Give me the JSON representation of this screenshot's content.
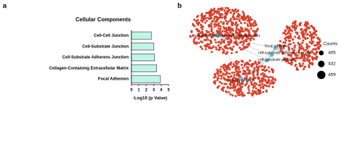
{
  "panel_labels": [
    "a",
    "b"
  ],
  "chart_data": {
    "type": "bar",
    "orientation": "horizontal",
    "title": "Cellular Components",
    "categories": [
      "Cell-Cell Junction",
      "Cell-Substrate Junction",
      "Cell-Substrate Adherens Junction",
      "Collagen-Containing Extracellular Matrix",
      "Focal Adhesion"
    ],
    "values": [
      2.7,
      3.0,
      3.1,
      3.4,
      3.9
    ],
    "color": "#bff5e6",
    "xlim": [
      0,
      5
    ],
    "xticks": [
      0,
      1,
      2,
      3,
      4,
      5
    ],
    "x_label": "-Log10 (p Value)"
  },
  "network": {
    "nodes": [
      "collagen-containing extracellular matrix",
      "focal adhesion",
      "cell-substrate adherens junction",
      "cell-substrate junction",
      "cell-cell junction"
    ],
    "legend": {
      "title": "Counts",
      "values": [
        405,
        432,
        459
      ]
    }
  }
}
